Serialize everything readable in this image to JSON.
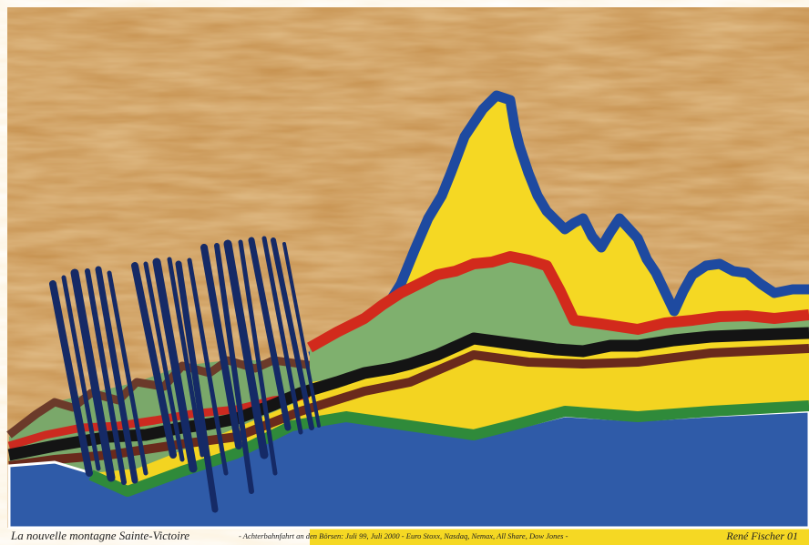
{
  "caption": {
    "title": "La nouvelle montagne Sainte-Victoire",
    "subtitle": "- Achterbahnfahrt an den Börsen: Juli 99, Juli 2000 - Euro Stoxx, Nasdaq, Nemax, All Share, Dow Jones -",
    "signature": "René Fischer 01"
  }
}
